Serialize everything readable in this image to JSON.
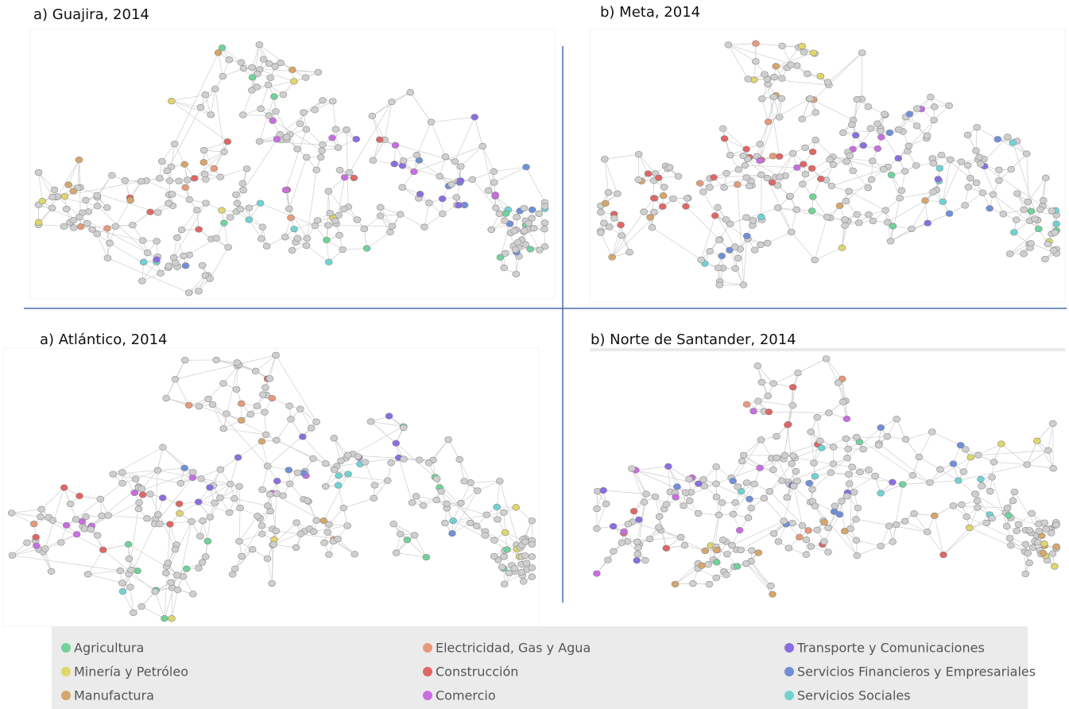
{
  "panels": [
    {
      "title": "a) Guajira, 2014"
    },
    {
      "title": "b) Meta, 2014"
    },
    {
      "title": "a) Atlántico, 2014"
    },
    {
      "title": "b) Norte de Santander, 2014"
    }
  ],
  "legend": [
    {
      "label": "Agricultura",
      "color": "#6fd39a"
    },
    {
      "label": "Minería y Petróleo",
      "color": "#e0d66a"
    },
    {
      "label": "Manufactura",
      "color": "#d6a76a"
    },
    {
      "label": "Electricidad, Gas y Agua",
      "color": "#e69a7a"
    },
    {
      "label": "Construcción",
      "color": "#e06666"
    },
    {
      "label": "Comercio",
      "color": "#c86ee0"
    },
    {
      "label": "Transporte y Comunicaciones",
      "color": "#8a6ee0"
    },
    {
      "label": "Servicios Financieros y Empresariales",
      "color": "#6f90d8"
    },
    {
      "label": "Servicios Sociales",
      "color": "#6fd3d3"
    }
  ]
}
